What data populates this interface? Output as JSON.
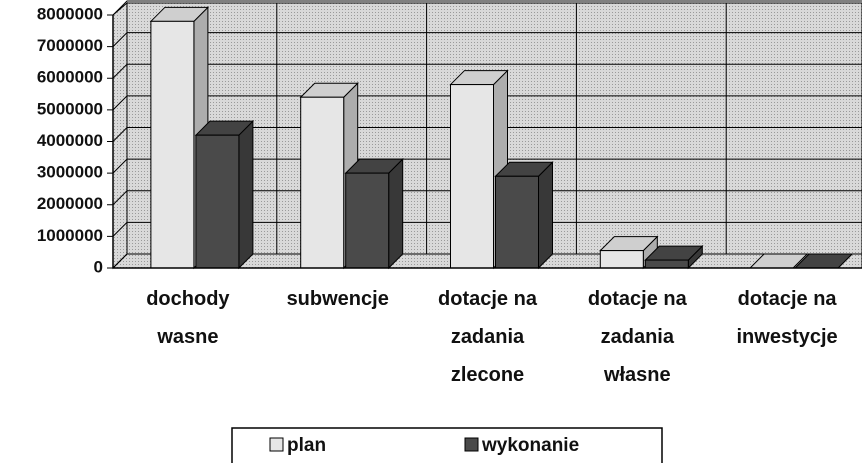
{
  "chart_data": {
    "type": "bar3d",
    "categories": [
      "dochody wasne",
      "subwencje",
      "dotacje na zadania zlecone",
      "dotacje na zadania własne",
      "dotacje na inwestycje"
    ],
    "series": [
      {
        "name": "plan",
        "color": "#e6e6e6",
        "values": [
          7800000,
          5400000,
          5800000,
          550000,
          0
        ]
      },
      {
        "name": "wykonanie",
        "color": "#4a4a4a",
        "values": [
          4200000,
          3000000,
          2900000,
          250000,
          0
        ]
      }
    ],
    "ylim": [
      0,
      8000000
    ],
    "yticks": [
      0,
      1000000,
      2000000,
      3000000,
      4000000,
      5000000,
      6000000,
      7000000,
      8000000
    ],
    "grid": true,
    "legend": "bottom"
  }
}
